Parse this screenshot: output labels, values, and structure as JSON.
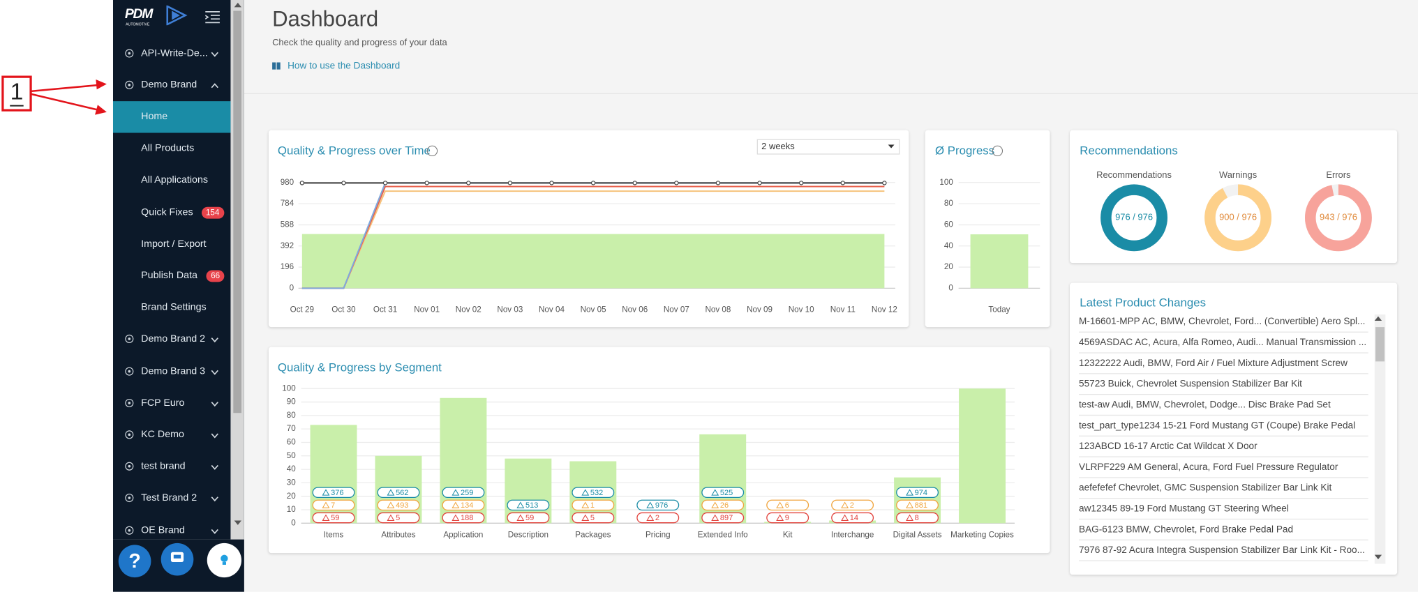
{
  "annotation": {
    "label": "1"
  },
  "sidebar": {
    "logo": "PDM",
    "logo_sub": "AUTOMOTIVE",
    "brands": [
      {
        "label": "API-Write-De..."
      },
      {
        "label": "Demo Brand",
        "children": [
          {
            "label": "Home",
            "selected": true
          },
          {
            "label": "All Products"
          },
          {
            "label": "All Applications"
          },
          {
            "label": "Quick Fixes",
            "badge": 154
          },
          {
            "label": "Import / Export"
          },
          {
            "label": "Publish Data",
            "badge": 66
          },
          {
            "label": "Brand Settings"
          }
        ]
      },
      {
        "label": "Demo Brand 2"
      },
      {
        "label": "Demo Brand 3"
      },
      {
        "label": "FCP Euro"
      },
      {
        "label": "KC Demo"
      },
      {
        "label": "test brand"
      },
      {
        "label": "Test Brand 2"
      },
      {
        "label": "OE Brand"
      }
    ],
    "help": "?"
  },
  "header": {
    "title": "Dashboard",
    "subtitle": "Check the quality and progress of your data",
    "link": "How to use the Dashboard"
  },
  "time_range": "2 weeks",
  "chart_data": [
    {
      "type": "line",
      "title": "Quality & Progress over Time",
      "categories": [
        "Oct 29",
        "Oct 30",
        "Oct 31",
        "Nov 01",
        "Nov 02",
        "Nov 03",
        "Nov 04",
        "Nov 05",
        "Nov 06",
        "Nov 07",
        "Nov 08",
        "Nov 09",
        "Nov 10",
        "Nov 11",
        "Nov 12"
      ],
      "ylim": [
        0,
        980
      ],
      "yticks": [
        0,
        196,
        392,
        588,
        784,
        980
      ],
      "grid": true,
      "series": [
        {
          "type": "area",
          "color": "#c9efaa",
          "values": [
            503,
            503,
            503,
            503,
            503,
            503,
            503,
            503,
            503,
            503,
            503,
            503,
            503,
            503,
            503
          ]
        },
        {
          "color": "#f6c37c",
          "values": [
            0,
            0,
            900,
            900,
            900,
            900,
            900,
            900,
            900,
            900,
            900,
            900,
            900,
            900,
            900
          ]
        },
        {
          "color": "#e8604c",
          "values": [
            0,
            0,
            943,
            943,
            943,
            943,
            943,
            943,
            943,
            943,
            943,
            943,
            943,
            943,
            943
          ]
        },
        {
          "color": "#7fa9dd",
          "values": [
            0,
            0,
            976,
            976,
            976,
            976,
            976,
            976,
            976,
            976,
            976,
            976,
            976,
            976,
            976
          ]
        },
        {
          "color": "#3a3a3a",
          "markers": true,
          "values": [
            976,
            976,
            976,
            976,
            976,
            976,
            976,
            976,
            976,
            976,
            976,
            976,
            976,
            976,
            976
          ]
        }
      ]
    },
    {
      "type": "bar",
      "title": "Ø Progress",
      "categories": [
        "Today"
      ],
      "values": [
        51
      ],
      "ylim": [
        0,
        100
      ],
      "yticks": [
        0,
        20,
        40,
        60,
        80,
        100
      ],
      "grid": true,
      "color": "#c9efaa"
    },
    {
      "type": "bar",
      "title": "Quality & Progress by Segment",
      "categories": [
        "Items",
        "Attributes",
        "Application",
        "Description",
        "Packages",
        "Pricing",
        "Extended Info",
        "Kit",
        "Interchange",
        "Digital Assets",
        "Marketing Copies"
      ],
      "values": [
        73,
        50,
        93,
        48,
        46,
        0,
        66,
        1,
        2,
        34,
        100
      ],
      "ylim": [
        0,
        100
      ],
      "yticks": [
        0,
        10,
        20,
        30,
        40,
        50,
        60,
        70,
        80,
        90,
        100
      ],
      "grid": true,
      "color": "#c9efaa",
      "badges": [
        {
          "color": "#1a8ca6",
          "values": [
            376,
            562,
            259,
            513,
            532,
            976,
            525,
            null,
            null,
            974,
            null
          ]
        },
        {
          "color": "#f0a43c",
          "values": [
            7,
            493,
            134,
            null,
            1,
            null,
            26,
            6,
            2,
            881,
            null
          ]
        },
        {
          "color": "#e2423c",
          "values": [
            59,
            5,
            188,
            59,
            5,
            2,
            897,
            9,
            14,
            8,
            null
          ]
        }
      ]
    }
  ],
  "recommendations": {
    "title": "Recommendations",
    "items": [
      {
        "label": "Recommendations",
        "value": 976,
        "total": 976,
        "value_label": "976 / 976",
        "color": "#1a8ca6"
      },
      {
        "label": "Warnings",
        "value": 900,
        "total": 976,
        "value_label": "900 / 976",
        "color": "#fdd08a"
      },
      {
        "label": "Errors",
        "value": 943,
        "total": 976,
        "value_label": "943 / 976",
        "color": "#f7a39b"
      }
    ]
  },
  "latest_changes": {
    "title": "Latest Product Changes",
    "items": [
      "M-16601-MPP AC, BMW, Chevrolet, Ford... (Convertible) Aero Spl...",
      "4569ASDAC AC, Acura, Alfa Romeo, Audi... Manual Transmission ...",
      "12322222 Audi, BMW, Ford Air / Fuel Mixture Adjustment Screw",
      "55723 Buick, Chevrolet Suspension Stabilizer Bar Kit",
      "test-aw Audi, BMW, Chevrolet, Dodge... Disc Brake Pad Set",
      "test_part_type1234 15-21 Ford Mustang GT (Coupe) Brake Pedal",
      "123ABCD 16-17 Arctic Cat Wildcat X Door",
      "VLRPF229 AM General, Acura, Ford Fuel Pressure Regulator",
      "aefefefef Chevrolet, GMC Suspension Stabilizer Bar Link Kit",
      "aw12345 89-19 Ford Mustang GT Steering Wheel",
      "BAG-6123 BMW, Chevrolet, Ford Brake Pedal Pad",
      "7976 87-92 Acura Integra Suspension Stabilizer Bar Link Kit - Roo..."
    ]
  }
}
